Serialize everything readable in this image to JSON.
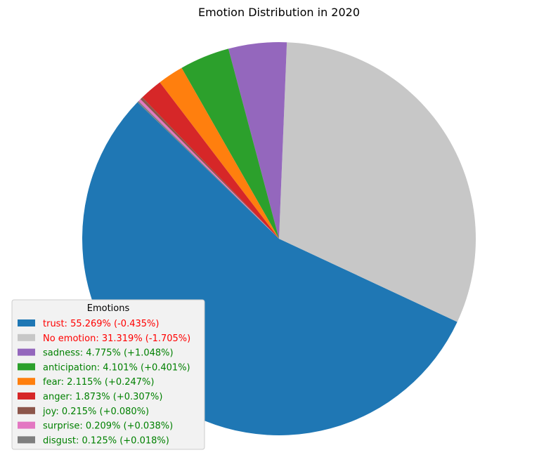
{
  "chart_data": {
    "type": "pie",
    "title": "Emotion Distribution in 2020",
    "legend_title": "Emotions",
    "legend_position": "lower-left",
    "start_angle_deg": 136,
    "direction": "counterclockwise",
    "slices": [
      {
        "label": "trust",
        "value": 55.269,
        "change": "-0.435%",
        "legend": "trust: 55.269% (-0.435%)",
        "color": "#1f77b4",
        "text_color": "#ff0000"
      },
      {
        "label": "No emotion",
        "value": 31.319,
        "change": "-1.705%",
        "legend": "No emotion: 31.319% (-1.705%)",
        "color": "#c7c7c7",
        "text_color": "#ff0000"
      },
      {
        "label": "sadness",
        "value": 4.775,
        "change": "+1.048%",
        "legend": "sadness: 4.775% (+1.048%)",
        "color": "#9467bd",
        "text_color": "#008000"
      },
      {
        "label": "anticipation",
        "value": 4.101,
        "change": "+0.401%",
        "legend": "anticipation: 4.101% (+0.401%)",
        "color": "#2ca02c",
        "text_color": "#008000"
      },
      {
        "label": "fear",
        "value": 2.115,
        "change": "+0.247%",
        "legend": "fear: 2.115% (+0.247%)",
        "color": "#ff7f0e",
        "text_color": "#008000"
      },
      {
        "label": "anger",
        "value": 1.873,
        "change": "+0.307%",
        "legend": "anger: 1.873% (+0.307%)",
        "color": "#d62728",
        "text_color": "#008000"
      },
      {
        "label": "joy",
        "value": 0.215,
        "change": "+0.080%",
        "legend": "joy: 0.215% (+0.080%)",
        "color": "#8c564b",
        "text_color": "#008000"
      },
      {
        "label": "surprise",
        "value": 0.209,
        "change": "+0.038%",
        "legend": "surprise: 0.209% (+0.038%)",
        "color": "#e377c2",
        "text_color": "#008000"
      },
      {
        "label": "disgust",
        "value": 0.125,
        "change": "+0.018%",
        "legend": "disgust: 0.125% (+0.018%)",
        "color": "#7f7f7f",
        "text_color": "#008000"
      }
    ]
  }
}
